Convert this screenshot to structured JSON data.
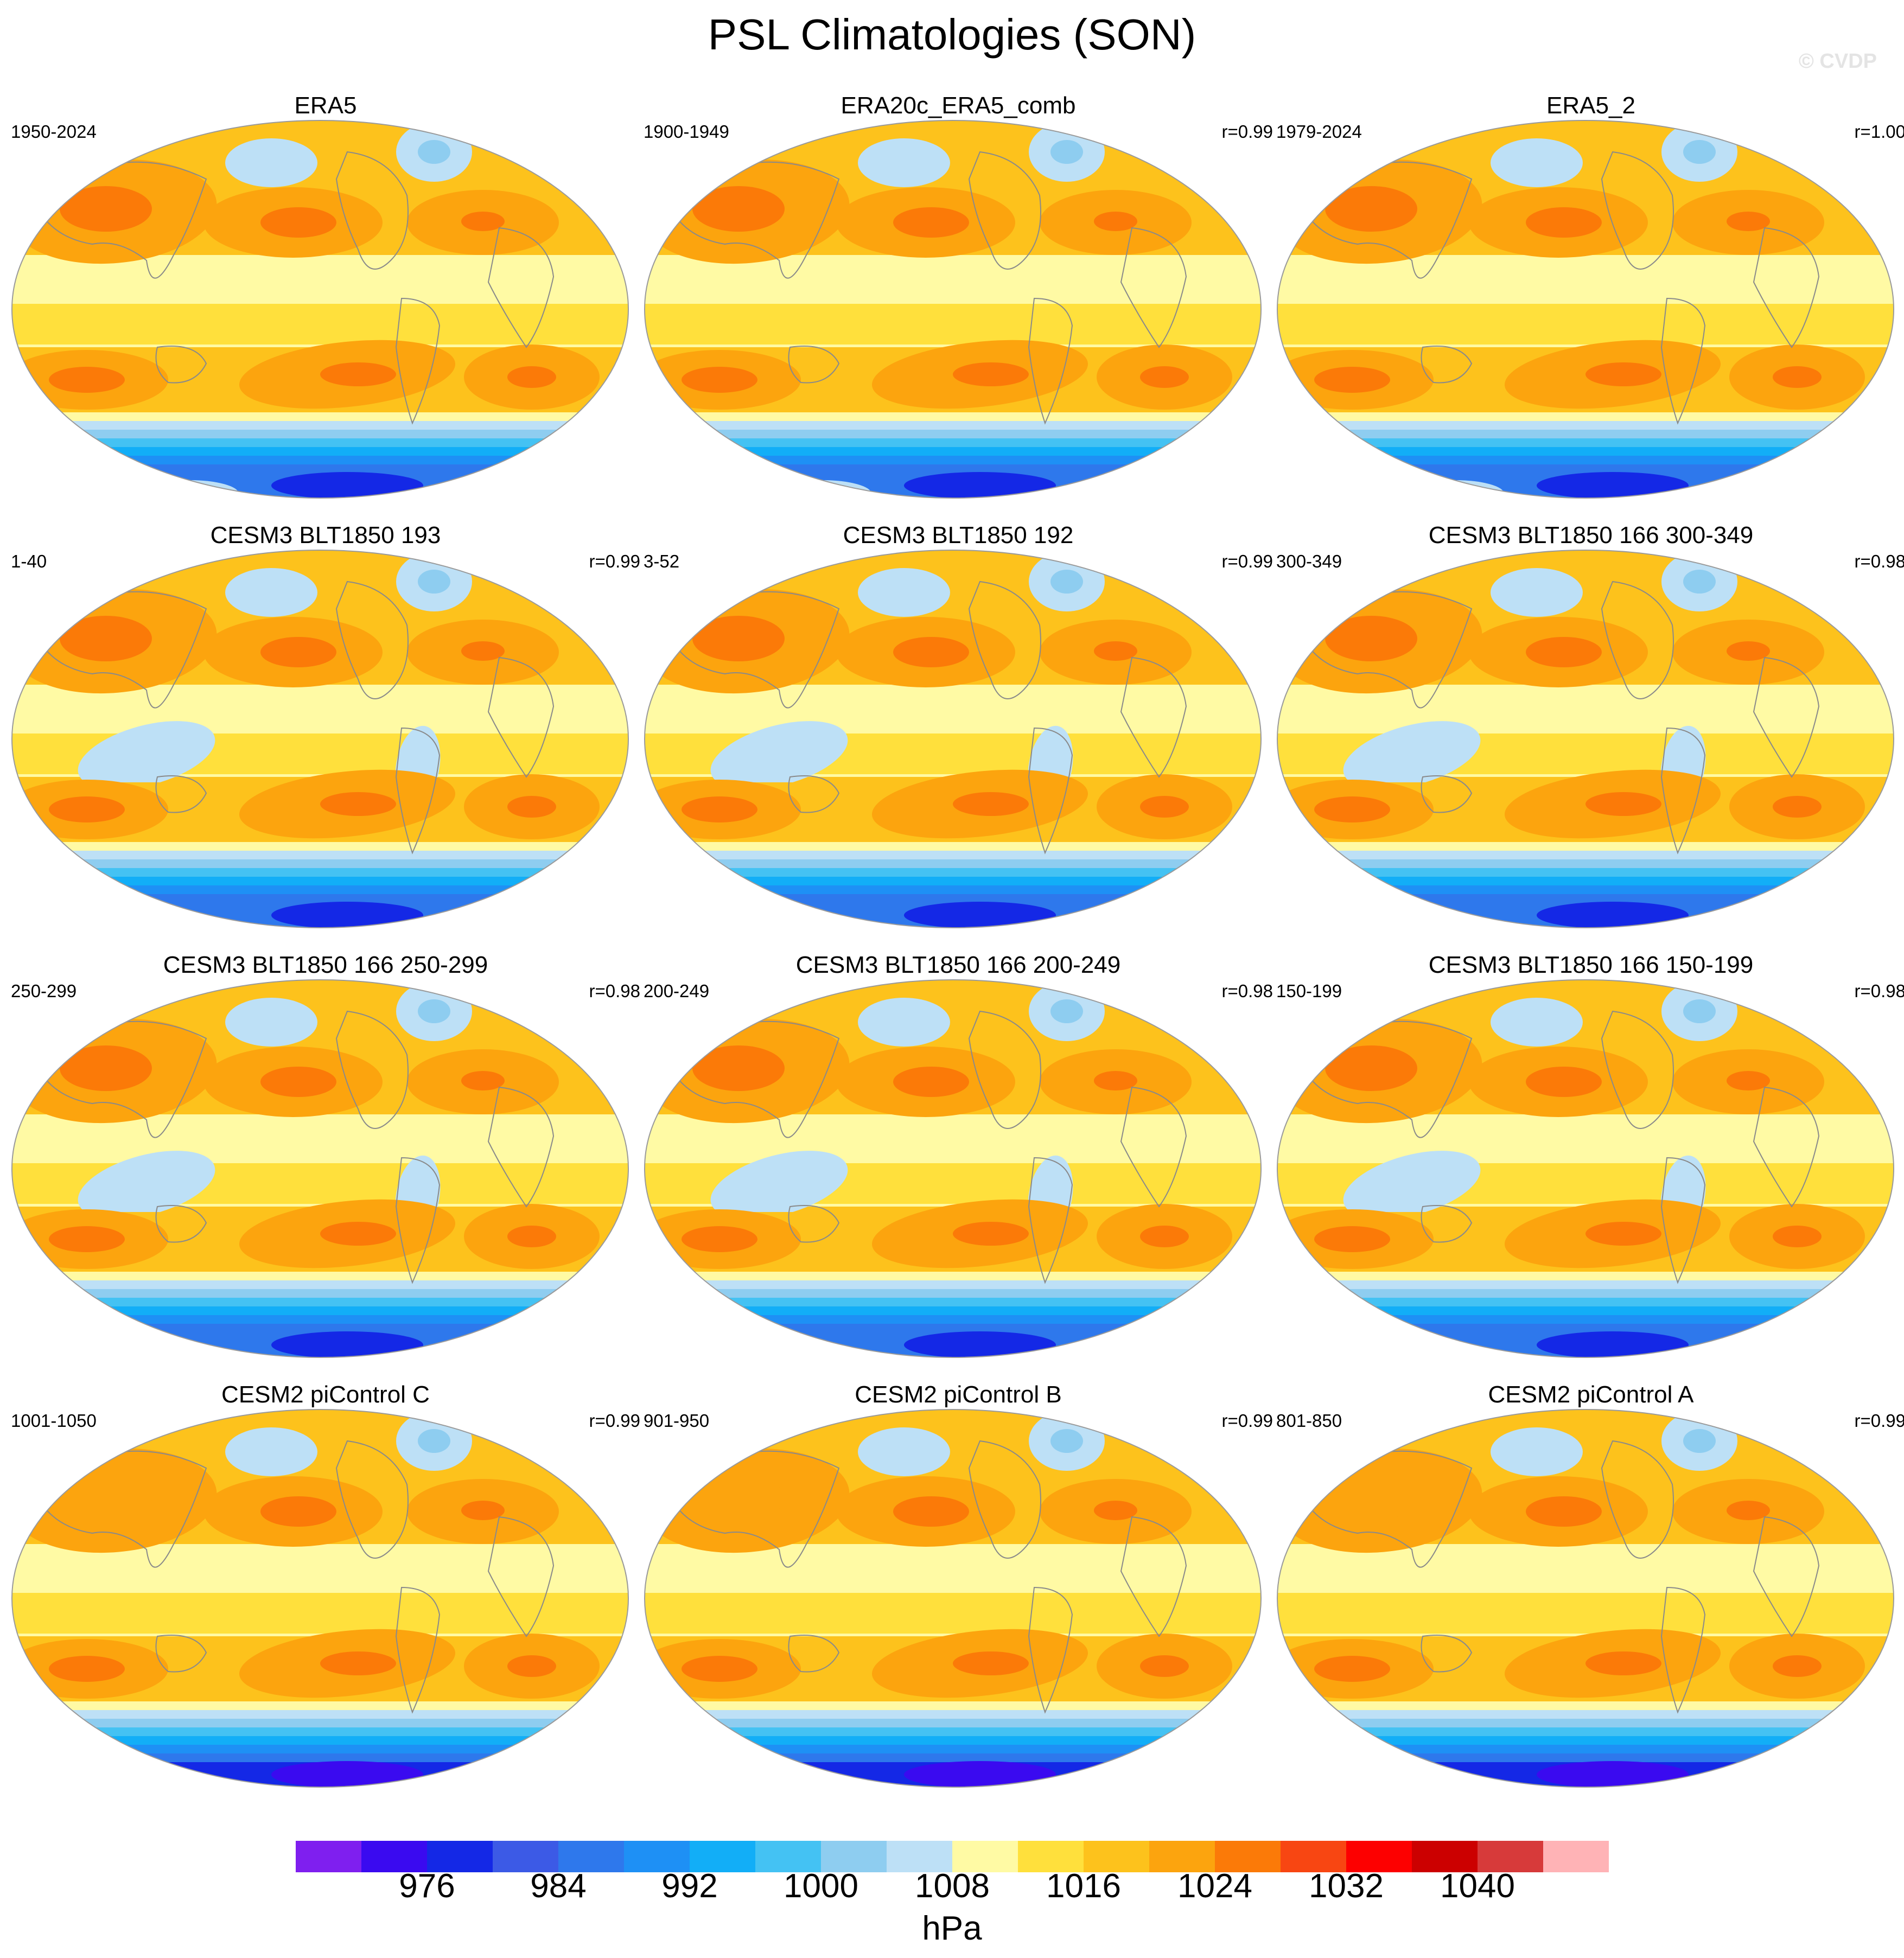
{
  "title": "PSL Climatologies (SON)",
  "watermark": "© CVDP",
  "colors": {
    "land_outline": "#8a8a8a",
    "map_border": "#9a9a9a"
  },
  "chart_data": {
    "type": "contour-map-grid",
    "projection": "Robinson",
    "variable": "PSL",
    "season": "SON",
    "panels": [
      {
        "title": "ERA5",
        "period": "1950-2024",
        "r": ""
      },
      {
        "title": "ERA20c_ERA5_comb",
        "period": "1900-1949",
        "r": "r=0.99"
      },
      {
        "title": "ERA5_2",
        "period": "1979-2024",
        "r": "r=1.00"
      },
      {
        "title": "CESM3 BLT1850 193",
        "period": "1-40",
        "r": "r=0.99"
      },
      {
        "title": "CESM3 BLT1850 192",
        "period": "3-52",
        "r": "r=0.99"
      },
      {
        "title": "CESM3 BLT1850 166 300-349",
        "period": "300-349",
        "r": "r=0.98"
      },
      {
        "title": "CESM3 BLT1850 166 250-299",
        "period": "250-299",
        "r": "r=0.98"
      },
      {
        "title": "CESM3 BLT1850 166 200-249",
        "period": "200-249",
        "r": "r=0.98"
      },
      {
        "title": "CESM3 BLT1850 166 150-199",
        "period": "150-199",
        "r": "r=0.98"
      },
      {
        "title": "CESM2 piControl C",
        "period": "1001-1050",
        "r": "r=0.99"
      },
      {
        "title": "CESM2 piControl B",
        "period": "901-950",
        "r": "r=0.99"
      },
      {
        "title": "CESM2 piControl A",
        "period": "801-850",
        "r": "r=0.99"
      }
    ],
    "colorbar": {
      "unit": "hPa",
      "levels": [
        972,
        976,
        980,
        984,
        988,
        992,
        996,
        1000,
        1004,
        1008,
        1012,
        1016,
        1020,
        1024,
        1028,
        1032,
        1036,
        1040,
        1044
      ],
      "labels": [
        "976",
        "984",
        "992",
        "1000",
        "1008",
        "1016",
        "1024",
        "1032",
        "1040"
      ],
      "colors": [
        "#7f1fef",
        "#3a0af0",
        "#1428e6",
        "#3c5ae6",
        "#2e78ec",
        "#1e90f5",
        "#12aef7",
        "#44c2f3",
        "#8ecdf0",
        "#bde0f6",
        "#fffaa4",
        "#ffe03c",
        "#fdc21c",
        "#fca40e",
        "#fb7a08",
        "#f84612",
        "#fd0000",
        "#cc0000",
        "#d73a3a",
        "#ffb3b6"
      ]
    }
  }
}
